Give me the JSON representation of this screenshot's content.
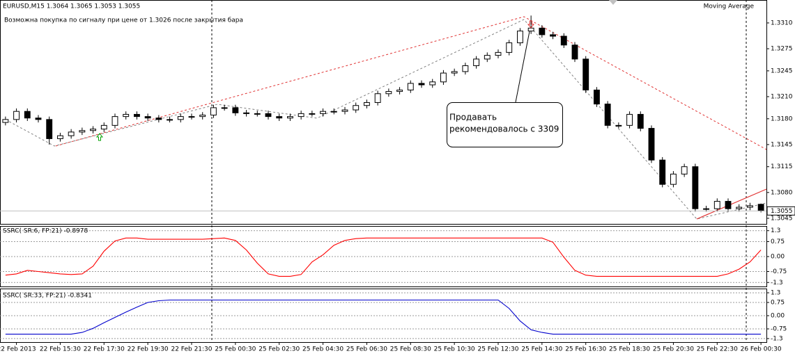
{
  "chart_data": [
    {
      "type": "candlestick",
      "title": "EURUSD,M15  1.3064 1.3065 1.3053 1.3055",
      "subtitle": "Возможна покупка по сигналу при цене от 1.3026 после закрытия бара",
      "indicator_label": "Moving Average",
      "annotation": [
        "Продавать",
        "рекомендовалось с 3309"
      ],
      "last_price": 1.3055,
      "up_color": "#ffffff",
      "down_color": "#000000",
      "x": [
        0,
        1,
        2,
        3,
        4,
        5,
        6,
        7,
        8,
        9,
        10,
        11,
        12,
        13,
        14,
        15,
        16,
        17,
        18,
        19,
        20,
        21,
        22,
        23,
        24,
        25,
        26,
        27,
        28,
        29,
        30,
        31,
        32,
        33,
        34,
        35,
        36,
        37,
        38,
        39,
        40,
        41,
        42,
        43,
        44,
        45,
        46,
        47,
        48,
        49,
        50,
        51,
        52,
        53,
        54,
        55,
        56,
        57,
        58,
        59,
        60,
        61,
        62,
        63,
        64,
        65,
        66,
        67,
        68,
        69
      ],
      "xlim": [
        -0.5,
        69.5
      ],
      "xticks": [
        {
          "value": 1,
          "label": "22 Feb 2013"
        },
        {
          "value": 5,
          "label": "22 Feb 15:30"
        },
        {
          "value": 9,
          "label": "22 Feb 17:30"
        },
        {
          "value": 13,
          "label": "22 Feb 19:30"
        },
        {
          "value": 17,
          "label": "22 Feb 21:30"
        },
        {
          "value": 21,
          "label": "25 Feb 00:30"
        },
        {
          "value": 25,
          "label": "25 Feb 02:30"
        },
        {
          "value": 29,
          "label": "25 Feb 04:30"
        },
        {
          "value": 33,
          "label": "25 Feb 06:30"
        },
        {
          "value": 37,
          "label": "25 Feb 08:30"
        },
        {
          "value": 41,
          "label": "25 Feb 10:30"
        },
        {
          "value": 45,
          "label": "25 Feb 12:30"
        },
        {
          "value": 49,
          "label": "25 Feb 14:30"
        },
        {
          "value": 53,
          "label": "25 Feb 16:30"
        },
        {
          "value": 57,
          "label": "25 Feb 18:30"
        },
        {
          "value": 61,
          "label": "25 Feb 20:30"
        },
        {
          "value": 65,
          "label": "25 Feb 22:30"
        },
        {
          "value": 69,
          "label": "26 Feb 00:30"
        }
      ],
      "open": [
        1.3175,
        1.3179,
        1.319,
        1.3181,
        1.3179,
        1.3153,
        1.3157,
        1.3162,
        1.3164,
        1.3166,
        1.3171,
        1.3183,
        1.3186,
        1.3183,
        1.3181,
        1.3179,
        1.3179,
        1.3183,
        1.3183,
        1.3185,
        1.3195,
        1.3195,
        1.3188,
        1.3187,
        1.3187,
        1.3183,
        1.3181,
        1.3183,
        1.3187,
        1.3187,
        1.319,
        1.319,
        1.3192,
        1.3198,
        1.3202,
        1.3214,
        1.3217,
        1.3219,
        1.3228,
        1.3226,
        1.323,
        1.3242,
        1.3244,
        1.3252,
        1.3261,
        1.3266,
        1.327,
        1.3283,
        1.3299,
        1.3303,
        1.3294,
        1.3292,
        1.328,
        1.3261,
        1.3219,
        1.32,
        1.3171,
        1.3171,
        1.3186,
        1.3167,
        1.3124,
        1.3091,
        1.3105,
        1.3115,
        1.3058,
        1.3058,
        1.3068,
        1.3058,
        1.306,
        1.3064
      ],
      "high": [
        1.3183,
        1.3194,
        1.3194,
        1.3185,
        1.3183,
        1.3161,
        1.3166,
        1.3168,
        1.317,
        1.3175,
        1.3187,
        1.319,
        1.319,
        1.3187,
        1.3185,
        1.3183,
        1.3187,
        1.3187,
        1.3189,
        1.3199,
        1.3199,
        1.3199,
        1.3192,
        1.3191,
        1.3191,
        1.3187,
        1.3187,
        1.3191,
        1.3191,
        1.3194,
        1.3194,
        1.3196,
        1.3202,
        1.3206,
        1.3218,
        1.3221,
        1.3223,
        1.3232,
        1.3232,
        1.3234,
        1.3246,
        1.3248,
        1.3256,
        1.3265,
        1.327,
        1.3274,
        1.3287,
        1.3303,
        1.332,
        1.3307,
        1.3298,
        1.3296,
        1.3284,
        1.3265,
        1.3223,
        1.3204,
        1.3175,
        1.319,
        1.319,
        1.3171,
        1.3128,
        1.3109,
        1.3119,
        1.3119,
        1.3062,
        1.3072,
        1.3072,
        1.3064,
        1.3066,
        1.3065
      ],
      "low": [
        1.3171,
        1.3175,
        1.3177,
        1.3175,
        1.3145,
        1.3149,
        1.3153,
        1.3158,
        1.316,
        1.3162,
        1.3167,
        1.3179,
        1.3179,
        1.3177,
        1.3175,
        1.3175,
        1.3175,
        1.3179,
        1.3179,
        1.3181,
        1.3191,
        1.3184,
        1.3183,
        1.3183,
        1.3179,
        1.3177,
        1.3177,
        1.3179,
        1.3183,
        1.3183,
        1.3186,
        1.3186,
        1.3188,
        1.3194,
        1.3198,
        1.321,
        1.3213,
        1.3215,
        1.3222,
        1.3222,
        1.3226,
        1.3238,
        1.324,
        1.3248,
        1.3257,
        1.3262,
        1.3266,
        1.3279,
        1.3295,
        1.329,
        1.3288,
        1.3276,
        1.3257,
        1.3215,
        1.3196,
        1.3167,
        1.3167,
        1.3167,
        1.3163,
        1.312,
        1.3087,
        1.3087,
        1.3101,
        1.3054,
        1.3054,
        1.3054,
        1.3054,
        1.3054,
        1.3056,
        1.3053
      ],
      "close": [
        1.3179,
        1.319,
        1.3181,
        1.3179,
        1.3153,
        1.3157,
        1.3162,
        1.3164,
        1.3166,
        1.3171,
        1.3183,
        1.3186,
        1.3183,
        1.3181,
        1.3179,
        1.3179,
        1.3183,
        1.3183,
        1.3185,
        1.3195,
        1.3195,
        1.3188,
        1.3187,
        1.3187,
        1.3183,
        1.3181,
        1.3183,
        1.3187,
        1.3187,
        1.319,
        1.319,
        1.3192,
        1.3198,
        1.3202,
        1.3214,
        1.3217,
        1.3219,
        1.3228,
        1.3226,
        1.323,
        1.3242,
        1.3244,
        1.3252,
        1.3261,
        1.3266,
        1.327,
        1.3283,
        1.3299,
        1.3303,
        1.3294,
        1.3292,
        1.328,
        1.3261,
        1.3219,
        1.32,
        1.3171,
        1.3171,
        1.3186,
        1.3167,
        1.3124,
        1.3091,
        1.3105,
        1.3115,
        1.3058,
        1.3058,
        1.3068,
        1.3058,
        1.306,
        1.3062,
        1.3055
      ],
      "ylim": [
        1.30374,
        1.33392
      ],
      "yticks": [
        {
          "value": 1.331,
          "label": "1.3310"
        },
        1.3275,
        1.3245,
        {
          "value": 1.321,
          "label": "1.3210"
        },
        {
          "value": 1.318,
          "label": "1.3180"
        },
        1.3145,
        1.3115,
        {
          "value": 1.308,
          "label": "1.3080"
        },
        1.3045
      ]
    },
    {
      "type": "line",
      "title": "SSRC( SR:6, FP:21) -0.8978",
      "x": [
        0,
        1,
        2,
        3,
        4,
        5,
        6,
        7,
        8,
        9,
        10,
        11,
        12,
        13,
        14,
        15,
        16,
        17,
        18,
        19,
        20,
        21,
        22,
        23,
        24,
        25,
        26,
        27,
        28,
        29,
        30,
        31,
        32,
        33,
        34,
        35,
        36,
        37,
        38,
        39,
        40,
        41,
        42,
        43,
        44,
        45,
        46,
        47,
        48,
        49,
        50,
        51,
        52,
        53,
        54,
        55,
        56,
        57,
        58,
        59,
        60,
        61,
        62,
        63,
        64,
        65,
        66,
        67,
        68,
        69
      ],
      "xlim": [
        -0.5,
        69.5
      ],
      "series": [
        {
          "color": "#ff0000",
          "values": [
            -0.93,
            -0.87,
            -0.69,
            -0.75,
            -0.81,
            -0.87,
            -0.9,
            -0.87,
            -0.48,
            0.27,
            0.78,
            0.93,
            0.93,
            0.87,
            0.87,
            0.87,
            0.87,
            0.87,
            0.87,
            0.9,
            0.93,
            0.81,
            0.33,
            -0.33,
            -0.87,
            -0.99,
            -0.99,
            -0.9,
            -0.27,
            0.09,
            0.57,
            0.81,
            0.9,
            0.93,
            0.93,
            0.93,
            0.93,
            0.93,
            0.93,
            0.93,
            0.93,
            0.93,
            0.93,
            0.93,
            0.93,
            0.93,
            0.93,
            0.93,
            0.93,
            0.93,
            0.72,
            -0.03,
            -0.69,
            -0.93,
            -0.99,
            -0.99,
            -0.99,
            -0.99,
            -0.99,
            -0.99,
            -0.99,
            -0.99,
            -0.99,
            -0.99,
            -0.99,
            -0.99,
            -0.87,
            -0.63,
            -0.27,
            0.33
          ]
        }
      ],
      "ylim": [
        -1.5,
        1.5
      ],
      "yticks": [
        1.3,
        0.75,
        {
          "value": 0,
          "label": "0.00"
        },
        -0.75,
        -1.3
      ]
    },
    {
      "type": "line",
      "title": "SSRC( SR:33, FP:21) -0.8341",
      "x": [
        0,
        1,
        2,
        3,
        4,
        5,
        6,
        7,
        8,
        9,
        10,
        11,
        12,
        13,
        14,
        15,
        16,
        17,
        18,
        19,
        20,
        21,
        22,
        23,
        24,
        25,
        26,
        27,
        28,
        29,
        30,
        31,
        32,
        33,
        34,
        35,
        36,
        37,
        38,
        39,
        40,
        41,
        42,
        43,
        44,
        45,
        46,
        47,
        48,
        49,
        50,
        51,
        52,
        53,
        54,
        55,
        56,
        57,
        58,
        59,
        60,
        61,
        62,
        63,
        64,
        65,
        66,
        67,
        68,
        69
      ],
      "xlim": [
        -0.5,
        69.5
      ],
      "series": [
        {
          "color": "#0000cc",
          "values": [
            -1.05,
            -1.05,
            -1.05,
            -1.05,
            -1.05,
            -1.05,
            -1.05,
            -0.95,
            -0.72,
            -0.4,
            -0.1,
            0.2,
            0.48,
            0.75,
            0.85,
            0.89,
            0.89,
            0.89,
            0.89,
            0.89,
            0.89,
            0.89,
            0.89,
            0.89,
            0.89,
            0.89,
            0.89,
            0.89,
            0.89,
            0.89,
            0.89,
            0.89,
            0.89,
            0.89,
            0.89,
            0.89,
            0.89,
            0.89,
            0.89,
            0.89,
            0.89,
            0.89,
            0.89,
            0.89,
            0.89,
            0.89,
            0.41,
            -0.3,
            -0.8,
            -0.95,
            -1.05,
            -1.05,
            -1.05,
            -1.05,
            -1.05,
            -1.05,
            -1.05,
            -1.05,
            -1.05,
            -1.05,
            -1.05,
            -1.05,
            -1.05,
            -1.05,
            -1.05,
            -1.05,
            -1.05,
            -1.05,
            -1.05,
            -1.05
          ]
        }
      ],
      "ylim": [
        -1.5,
        1.5
      ],
      "yticks": [
        1.3,
        0.75,
        {
          "value": 0,
          "label": "0.00"
        },
        -0.75,
        -1.3
      ]
    }
  ]
}
